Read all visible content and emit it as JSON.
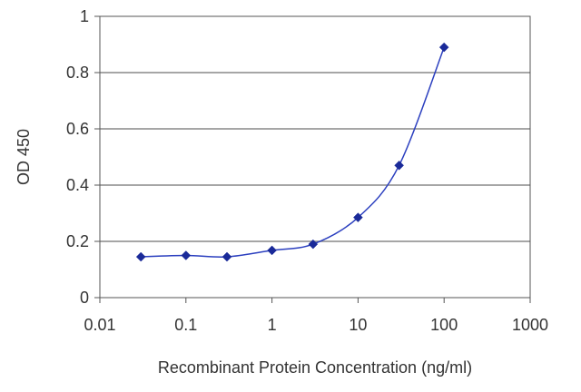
{
  "chart_data": {
    "type": "line",
    "title": "",
    "xlabel": "Recombinant Protein Concentration (ng/ml)",
    "ylabel": "OD 450",
    "x_scale": "log",
    "xlim": [
      0.01,
      1000
    ],
    "ylim": [
      0,
      1
    ],
    "x_ticks": [
      0.01,
      0.1,
      1,
      10,
      100,
      1000
    ],
    "x_tick_labels": [
      "0.01",
      "0.1",
      "1",
      "10",
      "100",
      "1000"
    ],
    "y_ticks": [
      0,
      0.2,
      0.4,
      0.6,
      0.8,
      1
    ],
    "y_tick_labels": [
      "0",
      "0.2",
      "0.4",
      "0.6",
      "0.8",
      "1"
    ],
    "grid": "horizontal",
    "legend": "none",
    "series": [
      {
        "x": [
          0.03,
          0.1,
          0.3,
          1,
          3,
          10,
          30,
          100
        ],
        "y": [
          0.145,
          0.15,
          0.145,
          0.168,
          0.19,
          0.285,
          0.47,
          0.89
        ]
      }
    ],
    "colors": {
      "line": "#2b3fbf",
      "marker": "#1a2a99",
      "grid": "#888888",
      "axis": "#555555"
    }
  }
}
